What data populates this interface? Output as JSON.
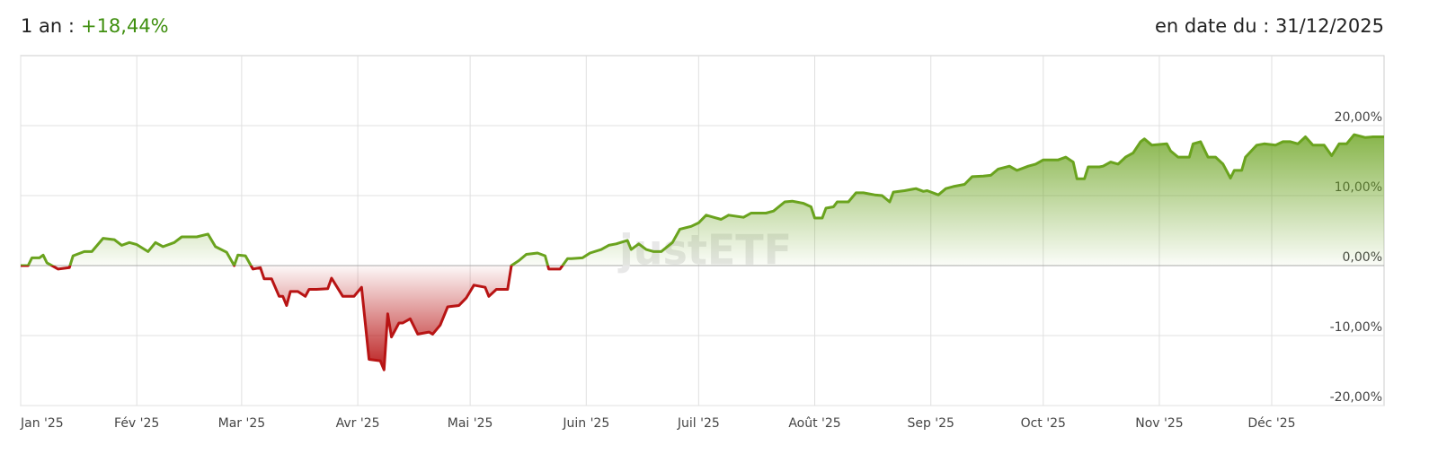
{
  "chart_data": {
    "type": "area",
    "period": "1 an :",
    "performance": "+18,44%",
    "date_label": "en date du : 31/12/2025",
    "watermark": "justETF",
    "color_positive": "#6aa31e",
    "color_negative": "#b81414",
    "performance_color": "#3f8f0f",
    "grid": true,
    "xlim": [
      0,
      364
    ],
    "xticks": [
      {
        "value": 0,
        "label": "Jan '25"
      },
      {
        "value": 31,
        "label": "Fév '25"
      },
      {
        "value": 59,
        "label": "Mar '25"
      },
      {
        "value": 90,
        "label": "Avr '25"
      },
      {
        "value": 120,
        "label": "Mai '25"
      },
      {
        "value": 151,
        "label": "Juin '25"
      },
      {
        "value": 181,
        "label": "Juil '25"
      },
      {
        "value": 212,
        "label": "Août '25"
      },
      {
        "value": 243,
        "label": "Sep '25"
      },
      {
        "value": 273,
        "label": "Oct '25"
      },
      {
        "value": 304,
        "label": "Nov '25"
      },
      {
        "value": 334,
        "label": "Déc '25"
      }
    ],
    "ylim": [
      -20,
      30
    ],
    "yticks": [
      {
        "value": -20,
        "label": "-20,00%"
      },
      {
        "value": -10,
        "label": "-10,00%"
      },
      {
        "value": 0,
        "label": "0,00%"
      },
      {
        "value": 10,
        "label": "10,00%"
      },
      {
        "value": 20,
        "label": "20,00%"
      }
    ],
    "x": [
      0,
      2,
      3,
      5,
      6,
      7,
      10,
      13,
      14,
      17,
      19,
      22,
      25,
      27,
      29,
      31,
      34,
      36,
      38,
      41,
      43,
      47,
      50,
      52,
      55,
      57,
      58,
      60,
      62,
      64,
      65,
      67,
      69,
      70,
      71,
      72,
      74,
      76,
      77,
      79,
      82,
      83,
      86,
      89,
      91,
      93,
      96,
      97,
      98,
      99,
      101,
      102,
      104,
      106,
      109,
      110,
      112,
      114,
      117,
      119,
      121,
      124,
      125,
      127,
      130,
      131,
      133,
      135,
      138,
      140,
      141,
      144,
      146,
      147,
      150,
      152,
      155,
      157,
      159,
      162,
      163,
      165,
      167,
      169,
      171,
      174,
      176,
      179,
      181,
      183,
      185,
      187,
      189,
      193,
      195,
      199,
      201,
      204,
      206,
      209,
      211,
      212,
      214,
      215,
      217,
      218,
      221,
      223,
      225,
      228,
      230,
      232,
      233,
      236,
      239,
      241,
      242,
      245,
      247,
      249,
      252,
      254,
      257,
      259,
      261,
      264,
      266,
      269,
      271,
      273,
      277,
      279,
      281,
      282,
      284,
      285,
      288,
      289,
      291,
      293,
      295,
      297,
      299,
      300,
      302,
      306,
      307,
      309,
      312,
      313,
      315,
      317,
      319,
      321,
      323,
      324,
      326,
      327,
      330,
      332,
      335,
      337,
      339,
      341,
      343,
      345,
      348,
      350,
      352,
      354,
      356,
      359,
      361,
      364
    ],
    "values": [
      0,
      0,
      1.1,
      1.1,
      1.5,
      0.4,
      -0.5,
      -0.3,
      1.4,
      2.0,
      2.0,
      3.9,
      3.7,
      2.9,
      3.3,
      3.0,
      2.0,
      3.3,
      2.7,
      3.3,
      4.1,
      4.1,
      4.5,
      2.7,
      1.9,
      0,
      1.5,
      1.4,
      -0.5,
      -0.3,
      -1.9,
      -1.9,
      -4.4,
      -4.4,
      -5.7,
      -3.7,
      -3.7,
      -4.4,
      -3.4,
      -3.4,
      -3.3,
      -1.8,
      -4.4,
      -4.4,
      -3.1,
      -13.4,
      -13.6,
      -14.9,
      -6.9,
      -10.2,
      -8.2,
      -8.2,
      -7.6,
      -9.8,
      -9.5,
      -9.8,
      -8.5,
      -5.9,
      -5.7,
      -4.6,
      -2.8,
      -3.1,
      -4.4,
      -3.4,
      -3.4,
      0,
      0.7,
      1.6,
      1.8,
      1.4,
      -0.5,
      -0.5,
      1.0,
      1.0,
      1.1,
      1.8,
      2.3,
      2.9,
      3.1,
      3.6,
      2.3,
      3.1,
      2.3,
      2.0,
      2.0,
      3.3,
      5.2,
      5.6,
      6.1,
      7.2,
      6.9,
      6.6,
      7.2,
      6.9,
      7.5,
      7.5,
      7.8,
      9.1,
      9.2,
      8.9,
      8.4,
      6.8,
      6.8,
      8.2,
      8.4,
      9.1,
      9.1,
      10.4,
      10.4,
      10.1,
      10.0,
      9.1,
      10.5,
      10.7,
      11.0,
      10.6,
      10.7,
      10.1,
      11.0,
      11.3,
      11.6,
      12.7,
      12.8,
      12.9,
      13.8,
      14.2,
      13.6,
      14.2,
      14.5,
      15.1,
      15.1,
      15.5,
      14.8,
      12.4,
      12.4,
      14.1,
      14.1,
      14.2,
      14.8,
      14.5,
      15.5,
      16.1,
      17.7,
      18.1,
      17.2,
      17.4,
      16.4,
      15.5,
      15.5,
      17.4,
      17.7,
      15.5,
      15.5,
      14.5,
      12.5,
      13.6,
      13.6,
      15.5,
      17.2,
      17.4,
      17.2,
      17.7,
      17.7,
      17.4,
      18.4,
      17.2,
      17.2,
      15.7,
      17.4,
      17.4,
      18.7,
      18.3,
      18.4,
      18.4
    ]
  }
}
